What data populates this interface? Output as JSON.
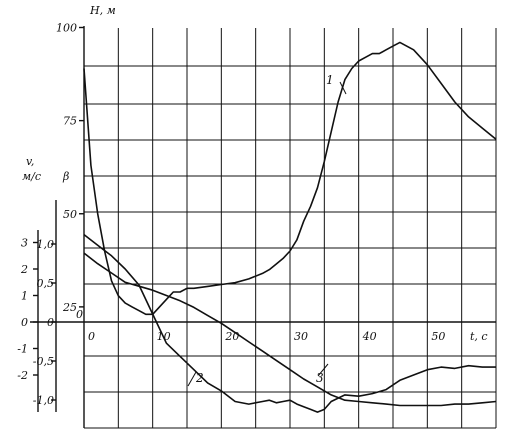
{
  "chart_data": {
    "type": "line",
    "x_axis": {
      "label": "t, c",
      "range": [
        0,
        60
      ],
      "ticks": [
        0,
        10,
        20,
        30,
        40,
        50
      ],
      "tick_labels": [
        "0",
        "10",
        "20",
        "30",
        "40",
        "50"
      ]
    },
    "h_axis": {
      "label": "H, м",
      "range": [
        0,
        100
      ],
      "ticks": [
        25,
        50,
        75,
        100
      ]
    },
    "beta_axis": {
      "label": "β",
      "ticks": [
        -1.0,
        -0.5,
        0,
        0.5,
        1.0
      ],
      "tick_labels": [
        "-1,0",
        "-0,5",
        "0",
        "0,5",
        "1,0"
      ]
    },
    "v_axis": {
      "label_line1": "v,",
      "label_line2": "м/с",
      "ticks": [
        -2,
        -1,
        0,
        1,
        2,
        3
      ],
      "tick_labels": [
        "-2",
        "-1",
        "0",
        "1",
        "2",
        "3"
      ]
    },
    "grid": true,
    "series": [
      {
        "name": "1",
        "axis": "H",
        "x": [
          0,
          1,
          2,
          3,
          4,
          5,
          6,
          7,
          8,
          9,
          10,
          11,
          12,
          13,
          14,
          15,
          16,
          18,
          20,
          22,
          24,
          26,
          27,
          28,
          29,
          30,
          31,
          32,
          33,
          34,
          35,
          36,
          37,
          38,
          39,
          40,
          41,
          42,
          43,
          44,
          45,
          46,
          48,
          50,
          52,
          54,
          56,
          58,
          60
        ],
        "y": [
          89,
          63,
          50,
          40,
          32,
          28,
          26,
          25,
          24,
          23,
          23,
          25,
          27,
          29,
          29,
          30,
          30,
          30.5,
          31,
          31.5,
          32.5,
          34,
          35,
          36.5,
          38,
          40,
          43,
          48,
          52,
          57,
          64,
          72,
          80,
          86,
          89,
          91,
          92,
          93,
          93,
          94,
          95,
          96,
          94,
          90,
          85,
          80,
          76,
          73,
          70
        ]
      },
      {
        "name": "2",
        "axis": "v",
        "x": [
          0,
          2,
          4,
          6,
          8,
          10,
          12,
          14,
          16,
          18,
          20,
          22,
          24,
          26,
          27,
          28,
          29,
          30,
          31,
          32,
          33,
          34,
          35,
          36,
          38,
          40,
          42,
          44,
          46,
          48,
          50,
          52,
          54,
          56,
          58,
          60
        ],
        "y": [
          3.3,
          2.9,
          2.5,
          2.0,
          1.4,
          0.3,
          -0.8,
          -1.3,
          -1.8,
          -2.3,
          -2.6,
          -3.0,
          -3.1,
          -3.0,
          -2.95,
          -3.05,
          -3.0,
          -2.95,
          -3.1,
          -3.2,
          -3.3,
          -3.4,
          -3.3,
          -3.0,
          -2.75,
          -2.8,
          -2.7,
          -2.55,
          -2.2,
          -2.0,
          -1.8,
          -1.7,
          -1.75,
          -1.65,
          -1.7,
          -1.7
        ]
      },
      {
        "name": "3",
        "axis": "v",
        "x": [
          0,
          2,
          4,
          6,
          8,
          10,
          12,
          14,
          16,
          18,
          20,
          22,
          24,
          26,
          28,
          30,
          32,
          34,
          36,
          38,
          40,
          42,
          44,
          46,
          48,
          50,
          52,
          54,
          56,
          58,
          60
        ],
        "y": [
          2.6,
          2.2,
          1.85,
          1.5,
          1.35,
          1.2,
          1.0,
          0.8,
          0.55,
          0.25,
          -0.05,
          -0.4,
          -0.75,
          -1.1,
          -1.45,
          -1.8,
          -2.15,
          -2.45,
          -2.75,
          -2.95,
          -3.0,
          -3.05,
          -3.1,
          -3.15,
          -3.15,
          -3.15,
          -3.15,
          -3.1,
          -3.1,
          -3.05,
          -3.0
        ]
      }
    ]
  }
}
